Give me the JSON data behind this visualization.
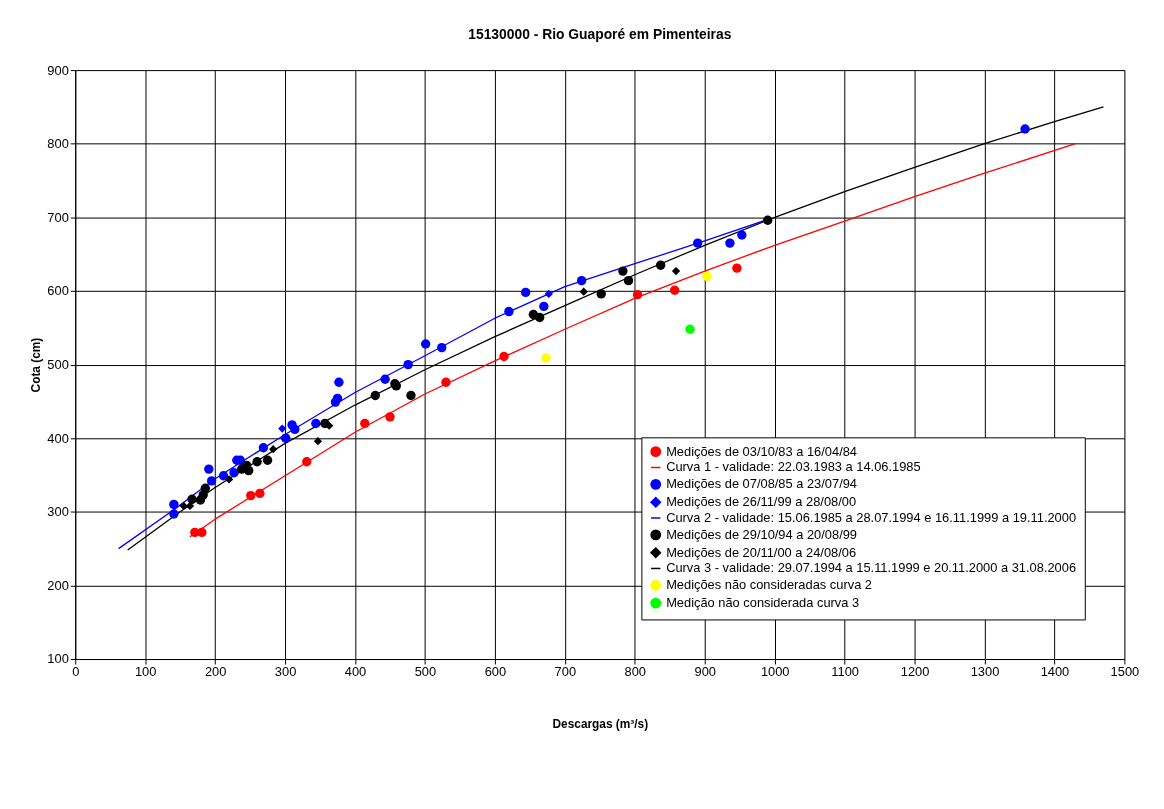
{
  "chart_data": {
    "type": "scatter",
    "title": "15130000 - Rio Guaporé em Pimenteiras",
    "xlabel": "Descargas (m³/s)",
    "ylabel": "Cota (cm)",
    "xlim": [
      0,
      1500
    ],
    "xticks": [
      0,
      100,
      200,
      300,
      400,
      500,
      600,
      700,
      800,
      900,
      1000,
      1100,
      1200,
      1300,
      1400,
      1500
    ],
    "ylim": [
      100,
      900
    ],
    "yticks": [
      100,
      200,
      300,
      400,
      500,
      600,
      700,
      800,
      900
    ],
    "grid": true,
    "legend": "bottom right",
    "series": [
      {
        "name": "Medições de 03/10/83 a 16/04/84",
        "marker": "circle",
        "color": "#ff0000",
        "x": [
          171,
          181,
          251,
          264,
          331,
          414,
          450,
          530,
          613,
          804,
          857,
          946
        ],
        "values": [
          272,
          272,
          322,
          325,
          368,
          420,
          429,
          476,
          511,
          595,
          601,
          631
        ]
      },
      {
        "name": "Curva 1 - validade: 22.03.1983 a 14.06.1985",
        "type": "line",
        "color": "#ff0000",
        "x": [
          164,
          200,
          300,
          400,
          500,
          600,
          700,
          800,
          900,
          1000,
          1100,
          1200,
          1300,
          1430
        ],
        "values": [
          266,
          290,
          349,
          408,
          460,
          505,
          548,
          590,
          627,
          662,
          695,
          728,
          760,
          800
        ]
      },
      {
        "name": "Medições de 07/08/85 a 23/07/94",
        "type": "scatter",
        "marker": "circle",
        "color": "#0000ff",
        "x": [
          141,
          141,
          191,
          195,
          212,
          227,
          231,
          236,
          269,
          301,
          310,
          314,
          344,
          372,
          375,
          377,
          443,
          476,
          501,
          524,
          620,
          644,
          670,
          724,
          890,
          936,
          953,
          1358
        ],
        "values": [
          310,
          297,
          358,
          342,
          349,
          353,
          370,
          370,
          387,
          400,
          418,
          412,
          420,
          449,
          454,
          476,
          480,
          500,
          528,
          523,
          572,
          598,
          579,
          614,
          665,
          665,
          676,
          820
        ]
      },
      {
        "name": "Medições de 26/11/99 a 28/08/00",
        "type": "scatter",
        "marker": "diamond",
        "color": "#0000ff",
        "x": [
          296,
          677
        ],
        "values": [
          413,
          596
        ]
      },
      {
        "name": "Curva 2 - validade: 15.06.1985 a 28.07.1994 e 16.11.1999 a 19.11.2000",
        "type": "line",
        "color": "#0000ff",
        "x": [
          62,
          140,
          200,
          300,
          400,
          500,
          600,
          700,
          800,
          900,
          990
        ],
        "values": [
          250,
          302,
          345,
          405,
          462,
          512,
          563,
          606,
          637,
          668,
          697
        ]
      },
      {
        "name": "Medições de 29/10/94 a 20/08/99",
        "type": "scatter",
        "marker": "circle",
        "color": "#000000",
        "x": [
          167,
          179,
          183,
          186,
          238,
          245,
          248,
          260,
          275,
          357,
          429,
          457,
          459,
          480,
          655,
          664,
          752,
          783,
          791,
          837,
          990
        ],
        "values": [
          317,
          316,
          323,
          332,
          358,
          363,
          356,
          368,
          370,
          420,
          458,
          474,
          471,
          458,
          568,
          564,
          596,
          627,
          614,
          635,
          696
        ]
      },
      {
        "name": "Medições de 20/11/00 a 24/08/06",
        "type": "scatter",
        "marker": "diamond",
        "color": "#000000",
        "x": [
          155,
          164,
          220,
          283,
          347,
          363,
          727,
          859
        ],
        "values": [
          308,
          308,
          344,
          385,
          396,
          417,
          599,
          627
        ]
      },
      {
        "name": "Curva 3 - validade: 29.07.1994 a 15.11.1999 e 20.11.2000 a 31.08.2006",
        "type": "line",
        "color": "#000000",
        "x": [
          75,
          150,
          200,
          300,
          400,
          500,
          600,
          700,
          800,
          900,
          1000,
          1100,
          1200,
          1300,
          1400,
          1470
        ],
        "values": [
          248,
          300,
          333,
          393,
          445,
          493,
          538,
          580,
          622,
          662,
          700,
          735,
          768,
          800,
          830,
          850
        ]
      },
      {
        "name": "Medições não consideradas curva 2",
        "type": "scatter",
        "marker": "circle",
        "color": "#ffff00",
        "x": [
          673,
          903
        ],
        "values": [
          509,
          620
        ]
      },
      {
        "name": "Medição não considerada curva 3",
        "type": "scatter",
        "marker": "circle",
        "color": "#00ff00",
        "x": [
          879
        ],
        "values": [
          548
        ]
      }
    ]
  }
}
